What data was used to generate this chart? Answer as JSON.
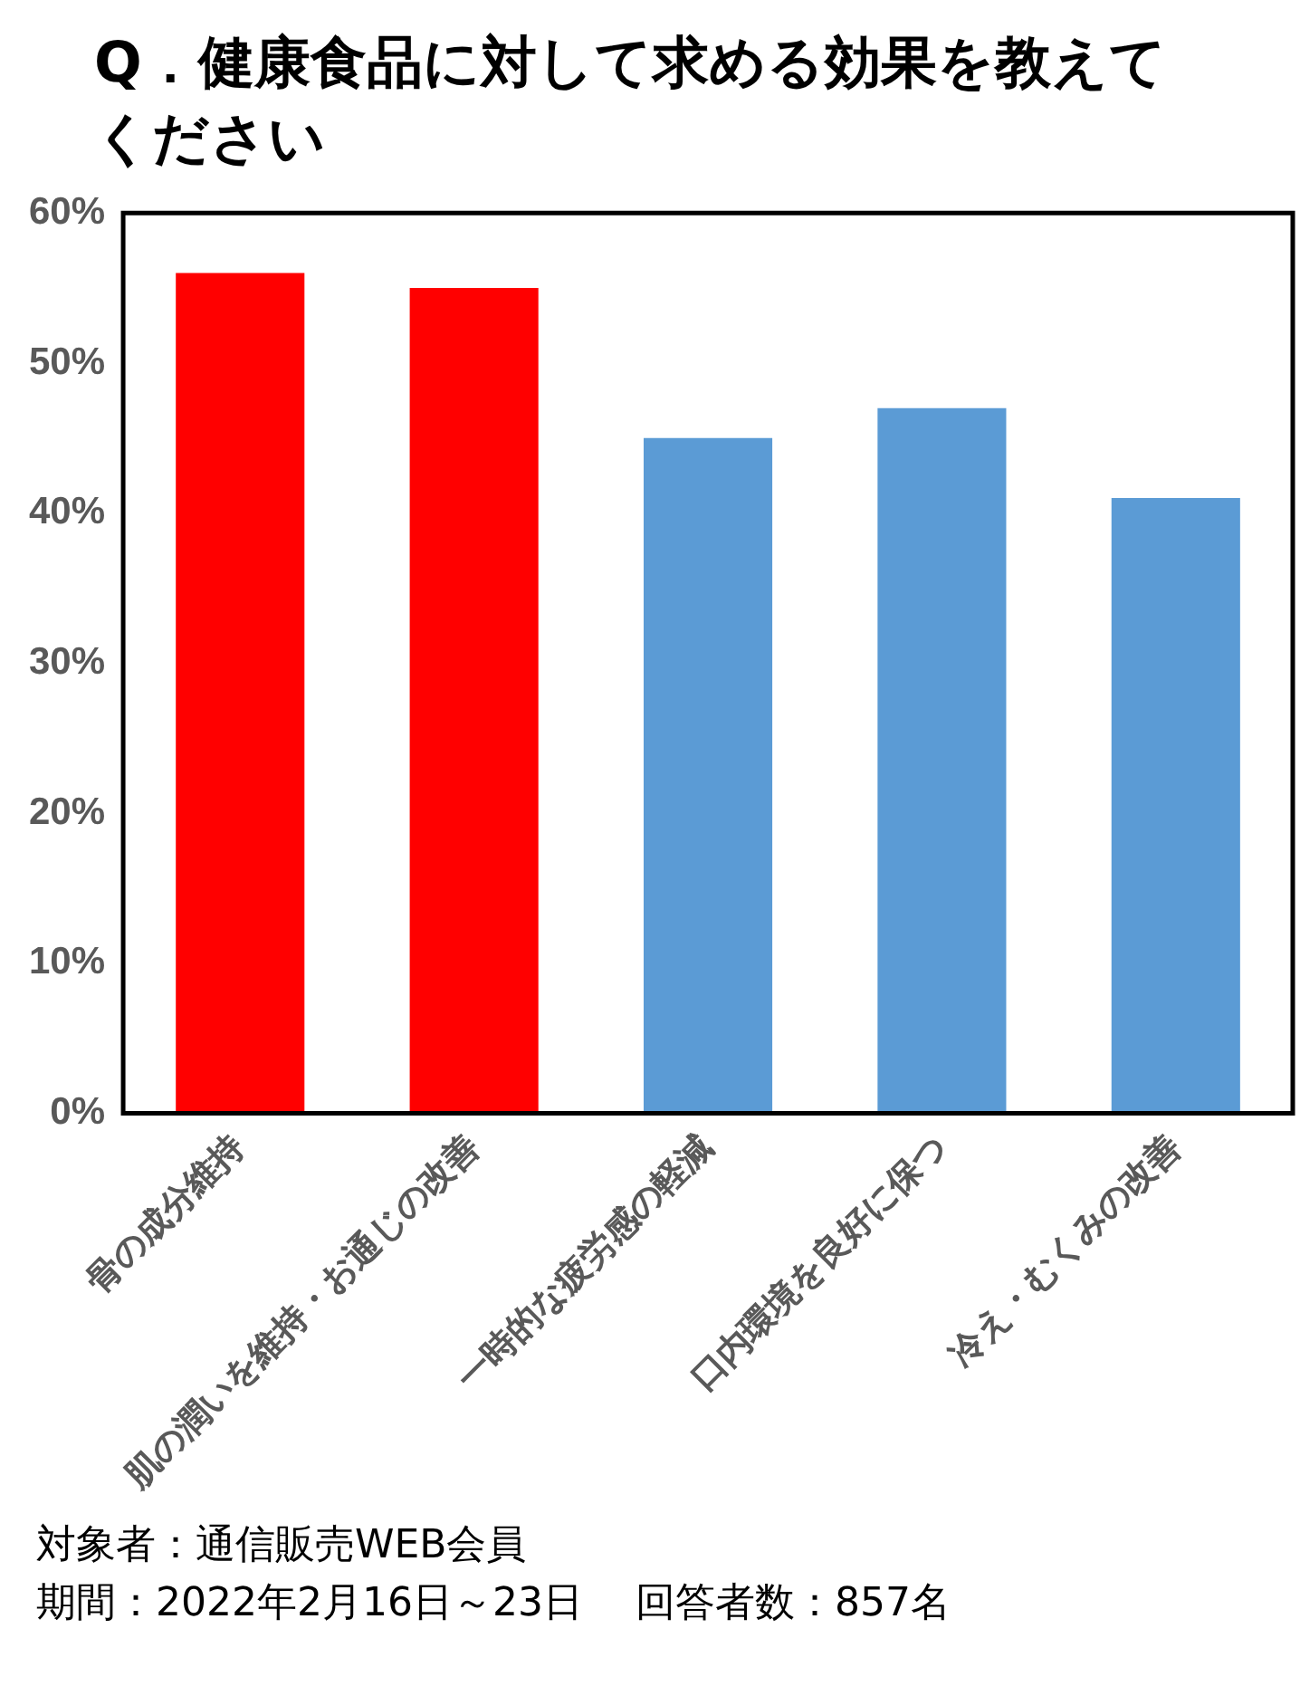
{
  "chart_data": {
    "type": "bar",
    "title": "Q．健康食品に対して求める効果を教えてください",
    "categories": [
      "骨の成分維持",
      "肌の潤いを維持・お通じの改善",
      "一時的な疲労感の軽減",
      "口内環境を良好に保つ",
      "冷え・むくみの改善"
    ],
    "values": [
      56,
      55,
      45,
      47,
      41
    ],
    "colors": [
      "#ff0000",
      "#ff0000",
      "#5b9bd5",
      "#5b9bd5",
      "#5b9bd5"
    ],
    "ylim": [
      0,
      60
    ],
    "yticks": [
      {
        "value": 0,
        "label": "0%"
      },
      {
        "value": 10,
        "label": "10%"
      },
      {
        "value": 20,
        "label": "20%"
      },
      {
        "value": 30,
        "label": "30%"
      },
      {
        "value": 40,
        "label": "40%"
      },
      {
        "value": 50,
        "label": "50%"
      },
      {
        "value": 60,
        "label": "60%"
      }
    ],
    "grid": false,
    "legend": false,
    "annotations": [
      "対象者：通信販売WEB会員",
      "期間：2022年2月16日～23日　 回答者数：857名"
    ]
  }
}
